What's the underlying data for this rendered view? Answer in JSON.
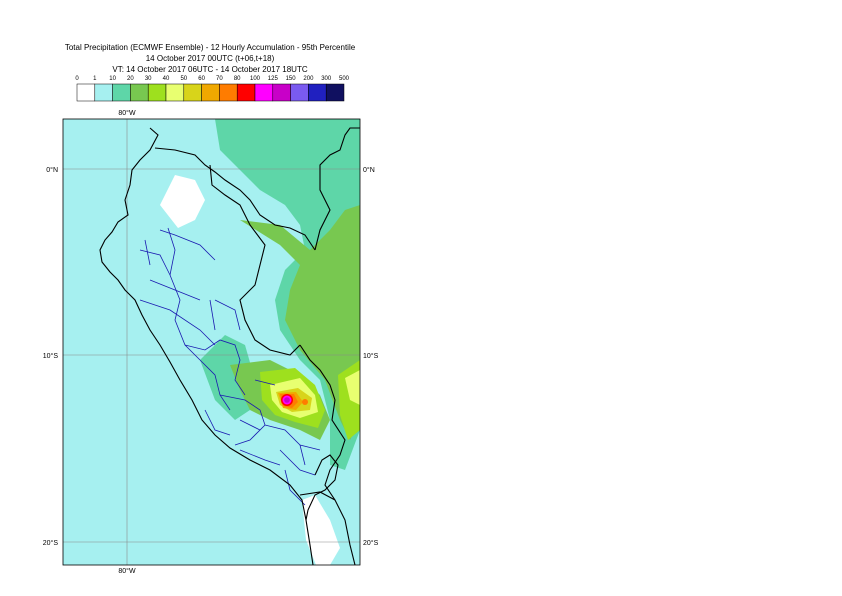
{
  "title": {
    "line1": "Total Precipitation (ECMWF Ensemble) - 12 Hourly Accumulation - 95th Percentile",
    "line2": "14 October 2017 00UTC (t+06,t+18)",
    "line3": "VT: 14 October 2017 06UTC - 14 October 2017 18UTC"
  },
  "legend": {
    "thresholds": [
      "0",
      "1",
      "10",
      "20",
      "30",
      "40",
      "50",
      "60",
      "70",
      "80",
      "100",
      "125",
      "150",
      "200",
      "300",
      "500"
    ],
    "colors": [
      "#ffffff",
      "#a6f0f0",
      "#5ed6a8",
      "#78c850",
      "#9ee01e",
      "#e8ff70",
      "#d8d41a",
      "#f0a800",
      "#ff7c00",
      "#ff0000",
      "#ff00ff",
      "#c800c8",
      "#7a5af0",
      "#2020c0",
      "#101060"
    ]
  },
  "map": {
    "lon_labels": [
      "80°W",
      "80°W"
    ],
    "lat_labels": [
      {
        "text": "0°N"
      },
      {
        "text": "10°S"
      },
      {
        "text": "20°S"
      }
    ],
    "colors": {
      "light": "#a6f0f0",
      "medium": "#5ed6a8",
      "green": "#78c850",
      "lime": "#9ee01e",
      "yellow": "#e8ff70",
      "olive": "#d8d41a",
      "orange": "#f0a800",
      "darkorange": "#ff7c00",
      "red": "#ff0000",
      "magenta": "#ff00ff",
      "purple": "#c800c8",
      "ocean": "#a6f0f0",
      "border": "#000000",
      "region": "#1a1ab0"
    }
  }
}
